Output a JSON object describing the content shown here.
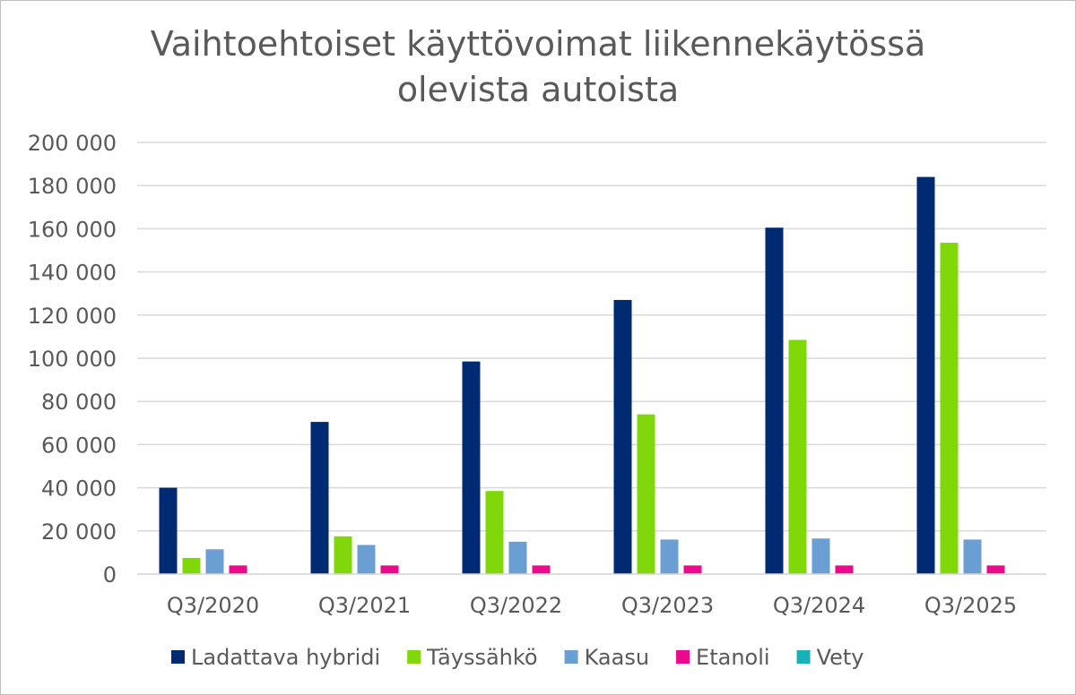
{
  "chart_data": {
    "type": "bar",
    "title_lines": [
      "Vaihtoehtoiset käyttövoimat liikennekäytössä",
      "olevista autoista"
    ],
    "xlabel": "",
    "ylabel": "",
    "categories": [
      "Q3/2020",
      "Q3/2021",
      "Q3/2022",
      "Q3/2023",
      "Q3/2024",
      "Q3/2025"
    ],
    "ylim": [
      0,
      200000
    ],
    "yticks": [
      "0",
      "20 000",
      "40 000",
      "60 000",
      "80 000",
      "100 000",
      "120 000",
      "140 000",
      "160 000",
      "180 000",
      "200 000"
    ],
    "grid": true,
    "legend_position": "bottom",
    "series": [
      {
        "name": "Ladattava hybridi",
        "color": "#002b73",
        "values": [
          40000,
          70500,
          98500,
          127000,
          160500,
          184000
        ]
      },
      {
        "name": "Täyssähkö",
        "color": "#80d80a",
        "values": [
          7500,
          17500,
          38500,
          74000,
          108500,
          153500
        ]
      },
      {
        "name": "Kaasu",
        "color": "#6b9fd4",
        "values": [
          11500,
          13500,
          15000,
          16000,
          16500,
          16000
        ]
      },
      {
        "name": "Etanoli",
        "color": "#ea0a8c",
        "values": [
          4000,
          4000,
          4000,
          4000,
          4000,
          4000
        ]
      },
      {
        "name": "Vety",
        "color": "#17b2b6",
        "values": [
          0,
          0,
          0,
          0,
          0,
          0
        ]
      }
    ]
  }
}
